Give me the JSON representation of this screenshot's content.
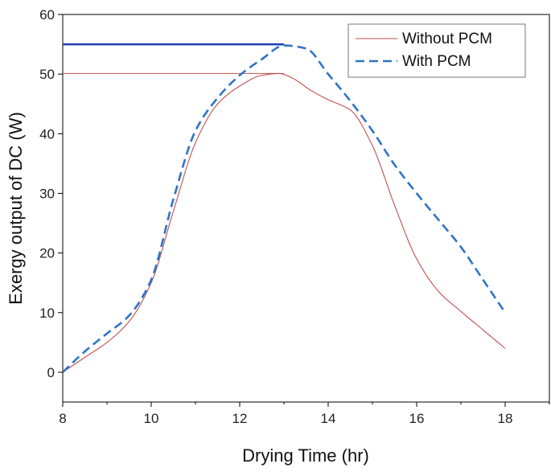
{
  "chart_data": {
    "type": "line",
    "title": "",
    "xlabel": "Drying Time (hr)",
    "ylabel": "Exergy output of DC (W)",
    "xlim": [
      8,
      19
    ],
    "ylim": [
      -5,
      60
    ],
    "x_ticks": [
      8,
      10,
      12,
      14,
      16,
      18
    ],
    "y_ticks": [
      0,
      10,
      20,
      30,
      40,
      50,
      60
    ],
    "grid": false,
    "legend_position": "top-right",
    "series": [
      {
        "name": "Without PCM",
        "color": "#c0504d",
        "style": "solid",
        "x": [
          8,
          8.5,
          9,
          9.5,
          10,
          10.5,
          11,
          11.5,
          12,
          12.5,
          12.9,
          13.2,
          13.6,
          14,
          14.5,
          15,
          15.5,
          16,
          16.5,
          17,
          17.5,
          18
        ],
        "y": [
          0,
          2.5,
          5,
          8.5,
          15,
          27,
          38.5,
          45,
          48,
          49.8,
          50.1,
          49.3,
          47.3,
          45.7,
          44,
          38,
          28,
          19,
          13.5,
          10.2,
          7.1,
          4
        ]
      },
      {
        "name": "With PCM",
        "color": "#2f74c8",
        "style": "dashed",
        "x": [
          8,
          8.5,
          9,
          9.5,
          10,
          10.5,
          11,
          11.5,
          12,
          12.5,
          13,
          13.5,
          14,
          14.5,
          15,
          15.5,
          16,
          16.5,
          17,
          17.5,
          18
        ],
        "y": [
          0,
          3.5,
          6.5,
          9.5,
          15.5,
          29,
          40.5,
          46,
          49.8,
          52.5,
          54.8,
          54.3,
          50,
          45.5,
          40.5,
          34.8,
          30,
          25.5,
          21,
          15.5,
          10
        ]
      }
    ],
    "reference_lines": [
      {
        "y": 55,
        "x_from": 8,
        "x_to": 13,
        "color": "#1f3fae",
        "width": 2.5
      },
      {
        "y": 50.1,
        "x_from": 8,
        "x_to": 13,
        "color": "#c0504d",
        "width": 1
      }
    ]
  }
}
